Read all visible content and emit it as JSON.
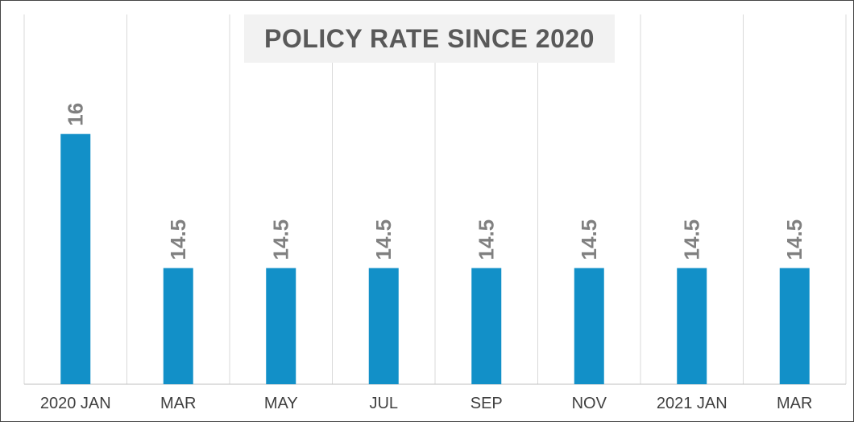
{
  "chart_data": {
    "type": "bar",
    "title": "POLICY RATE SINCE 2020",
    "categories": [
      "2020 JAN",
      "MAR",
      "MAY",
      "JUL",
      "SEP",
      "NOV",
      "2021 JAN",
      "MAR"
    ],
    "values": [
      16,
      14.5,
      14.5,
      14.5,
      14.5,
      14.5,
      14.5,
      14.5
    ],
    "data_labels": [
      "16",
      "14.5",
      "14.5",
      "14.5",
      "14.5",
      "14.5",
      "14.5",
      "14.5"
    ],
    "xlabel": "",
    "ylabel": "",
    "ylim": [
      13.2,
      16.6
    ],
    "grid": "vertical",
    "legend": "none",
    "colors": {
      "bar": "#1290c8",
      "data_label": "#808080",
      "title": "#595959",
      "title_background": "#f2f2f2",
      "tick_label": "#404040",
      "grid": "#d9d9d9"
    }
  }
}
